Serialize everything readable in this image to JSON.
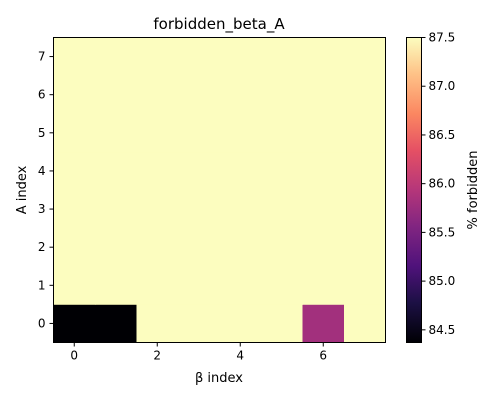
{
  "chart_data": {
    "type": "heatmap",
    "title": "forbidden_beta_A",
    "xlabel": "β index",
    "ylabel": "A index",
    "colorbar_label": "% forbidden",
    "x_ticks": [
      0,
      2,
      4,
      6
    ],
    "y_ticks": [
      0,
      1,
      2,
      3,
      4,
      5,
      6,
      7
    ],
    "colorbar_ticks": [
      84.5,
      85.0,
      85.5,
      86.0,
      86.5,
      87.0,
      87.5
    ],
    "colorbar_ticklabels": [
      "84.5",
      "85.0",
      "85.5",
      "86.0",
      "86.5",
      "87.0",
      "87.5"
    ],
    "vmin": 84.37,
    "vmax": 87.5,
    "colormap": "magma",
    "n_x": 8,
    "n_y": 8,
    "matrix_rows_from_A0": [
      [
        84.37,
        84.37,
        87.5,
        87.5,
        87.5,
        87.5,
        85.8,
        87.5
      ],
      [
        87.5,
        87.5,
        87.5,
        87.5,
        87.5,
        87.5,
        87.5,
        87.5
      ],
      [
        87.5,
        87.5,
        87.5,
        87.5,
        87.5,
        87.5,
        87.5,
        87.5
      ],
      [
        87.5,
        87.5,
        87.5,
        87.5,
        87.5,
        87.5,
        87.5,
        87.5
      ],
      [
        87.5,
        87.5,
        87.5,
        87.5,
        87.5,
        87.5,
        87.5,
        87.5
      ],
      [
        87.5,
        87.5,
        87.5,
        87.5,
        87.5,
        87.5,
        87.5,
        87.5
      ],
      [
        87.5,
        87.5,
        87.5,
        87.5,
        87.5,
        87.5,
        87.5,
        87.5
      ],
      [
        87.5,
        87.5,
        87.5,
        87.5,
        87.5,
        87.5,
        87.5,
        87.5
      ]
    ]
  }
}
